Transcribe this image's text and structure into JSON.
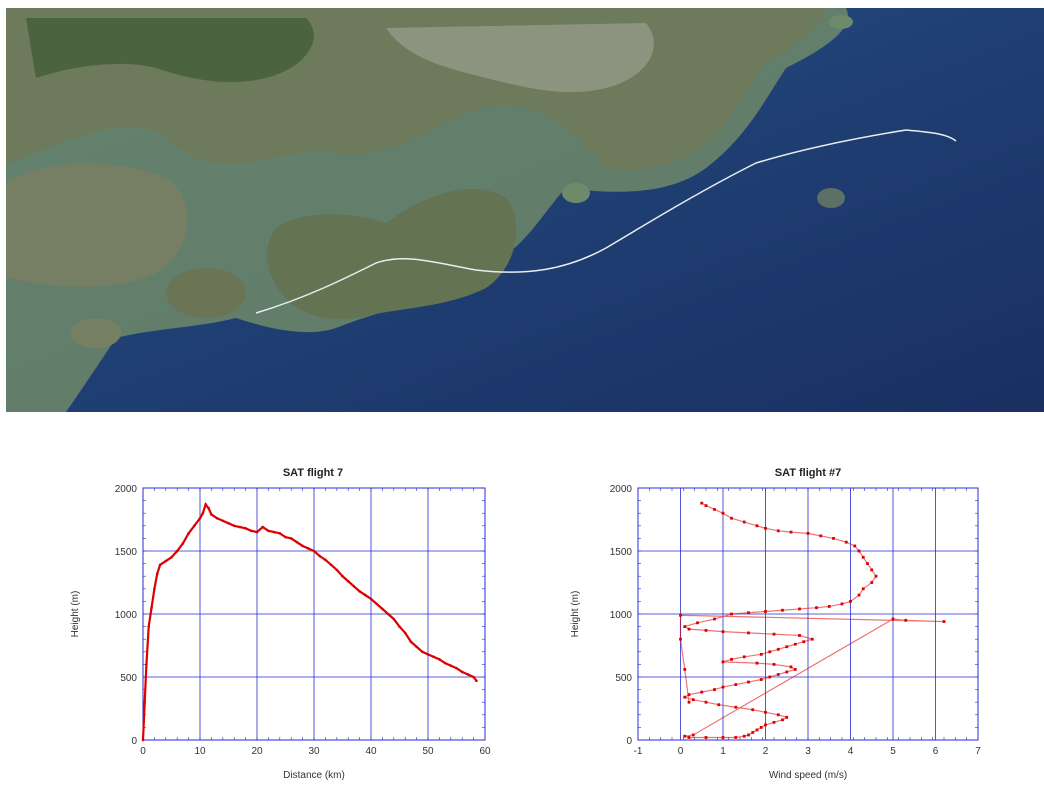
{
  "map": {
    "colors": {
      "sea_deep": "#1b3568",
      "sea_mid": "#234d80",
      "shallow": "#6f8a6a",
      "land": "#6d7a5c",
      "land_dark": "#3f5a35",
      "track": "#e8eef0"
    }
  },
  "charts": [
    {
      "title": "SAT flight 7",
      "xlabel": "Distance (km)",
      "ylabel": "Height (m)",
      "x_ticks": [
        "0",
        "10",
        "20",
        "30",
        "40",
        "50",
        "60"
      ],
      "y_ticks": [
        "0",
        "500",
        "1000",
        "1500",
        "2000"
      ]
    },
    {
      "title": "SAT flight #7",
      "xlabel": "Wind speed (m/s)",
      "ylabel": "Height (m)",
      "x_ticks": [
        "-1",
        "0",
        "1",
        "2",
        "3",
        "4",
        "5",
        "6",
        "7"
      ],
      "y_ticks": [
        "0",
        "500",
        "1000",
        "1500",
        "2000"
      ]
    }
  ],
  "chart_data": [
    {
      "type": "line",
      "title": "SAT flight 7",
      "xlabel": "Distance (km)",
      "ylabel": "Height (m)",
      "xlim": [
        0,
        60
      ],
      "ylim": [
        0,
        2000
      ],
      "grid": true,
      "color": "#dd0000",
      "series": [
        {
          "x": [
            0,
            0.3,
            0.6,
            1,
            1.5,
            2,
            2.5,
            3,
            4,
            5,
            6,
            7,
            8,
            9,
            10,
            10.5,
            11,
            11.5,
            12,
            13,
            14,
            15,
            16,
            17,
            18,
            19,
            20,
            21,
            22,
            23,
            24,
            25,
            26,
            27,
            28,
            29,
            30,
            31,
            32,
            33,
            34,
            35,
            36,
            37,
            38,
            39,
            40,
            41,
            42,
            43,
            44,
            45,
            46,
            47,
            48,
            49,
            50,
            51,
            52,
            53,
            54,
            55,
            56,
            57,
            58,
            58.5
          ],
          "y": [
            0,
            300,
            600,
            900,
            1050,
            1200,
            1320,
            1390,
            1420,
            1450,
            1500,
            1560,
            1640,
            1700,
            1760,
            1800,
            1870,
            1840,
            1790,
            1760,
            1740,
            1720,
            1700,
            1690,
            1680,
            1660,
            1650,
            1690,
            1660,
            1650,
            1640,
            1610,
            1600,
            1570,
            1540,
            1520,
            1500,
            1460,
            1430,
            1390,
            1350,
            1300,
            1260,
            1220,
            1180,
            1150,
            1120,
            1080,
            1040,
            1000,
            960,
            900,
            850,
            780,
            740,
            700,
            680,
            660,
            640,
            610,
            590,
            570,
            540,
            520,
            500,
            470
          ]
        }
      ]
    },
    {
      "type": "scatter",
      "title": "SAT flight #7",
      "xlabel": "Wind speed (m/s)",
      "ylabel": "Height (m)",
      "xlim": [
        -1,
        7
      ],
      "ylim": [
        0,
        2000
      ],
      "grid": true,
      "color": "#dd0000",
      "series": [
        {
          "x": [
            0.5,
            0.6,
            0.8,
            1.0,
            1.2,
            1.5,
            1.8,
            2.0,
            2.3,
            2.6,
            3.0,
            3.3,
            3.6,
            3.9,
            4.1,
            4.2,
            4.3,
            4.4,
            4.5,
            4.6,
            4.5,
            4.3,
            4.2,
            4.0,
            3.8,
            3.5,
            3.2,
            2.8,
            2.4,
            2.0,
            1.6,
            1.2,
            0.8,
            0.4,
            0.1,
            0.2,
            0.6,
            1.0,
            1.6,
            2.2,
            2.8,
            3.1,
            2.9,
            2.7,
            2.5,
            2.3,
            2.1,
            1.9,
            1.5,
            1.2,
            1.0,
            1.8,
            2.2,
            2.6,
            2.7,
            2.5,
            2.3,
            2.1,
            1.9,
            1.6,
            1.3,
            1.0,
            0.8,
            0.5,
            0.2,
            0.1,
            0.3,
            0.6,
            0.9,
            1.3,
            1.7,
            2.0,
            2.3,
            2.5,
            2.4,
            2.2,
            2.0,
            1.9,
            1.8,
            1.7,
            1.6,
            1.5,
            1.3,
            1.0,
            0.6,
            0.2,
            0.1,
            0.3,
            5.0,
            5.3,
            6.2,
            0.0,
            0.0,
            0.1,
            0.2
          ],
          "y": [
            1880,
            1860,
            1830,
            1800,
            1760,
            1730,
            1700,
            1680,
            1660,
            1650,
            1640,
            1620,
            1600,
            1570,
            1540,
            1500,
            1450,
            1400,
            1350,
            1300,
            1250,
            1200,
            1150,
            1100,
            1080,
            1060,
            1050,
            1040,
            1030,
            1020,
            1010,
            1000,
            960,
            930,
            900,
            880,
            870,
            860,
            850,
            840,
            830,
            800,
            780,
            760,
            740,
            720,
            700,
            680,
            660,
            640,
            620,
            610,
            600,
            580,
            560,
            540,
            520,
            500,
            480,
            460,
            440,
            420,
            400,
            380,
            360,
            340,
            320,
            300,
            280,
            260,
            240,
            220,
            200,
            180,
            160,
            140,
            120,
            100,
            80,
            60,
            40,
            30,
            20,
            20,
            20,
            20,
            30,
            40,
            960,
            950,
            940,
            990,
            800,
            560,
            300
          ]
        }
      ]
    }
  ]
}
